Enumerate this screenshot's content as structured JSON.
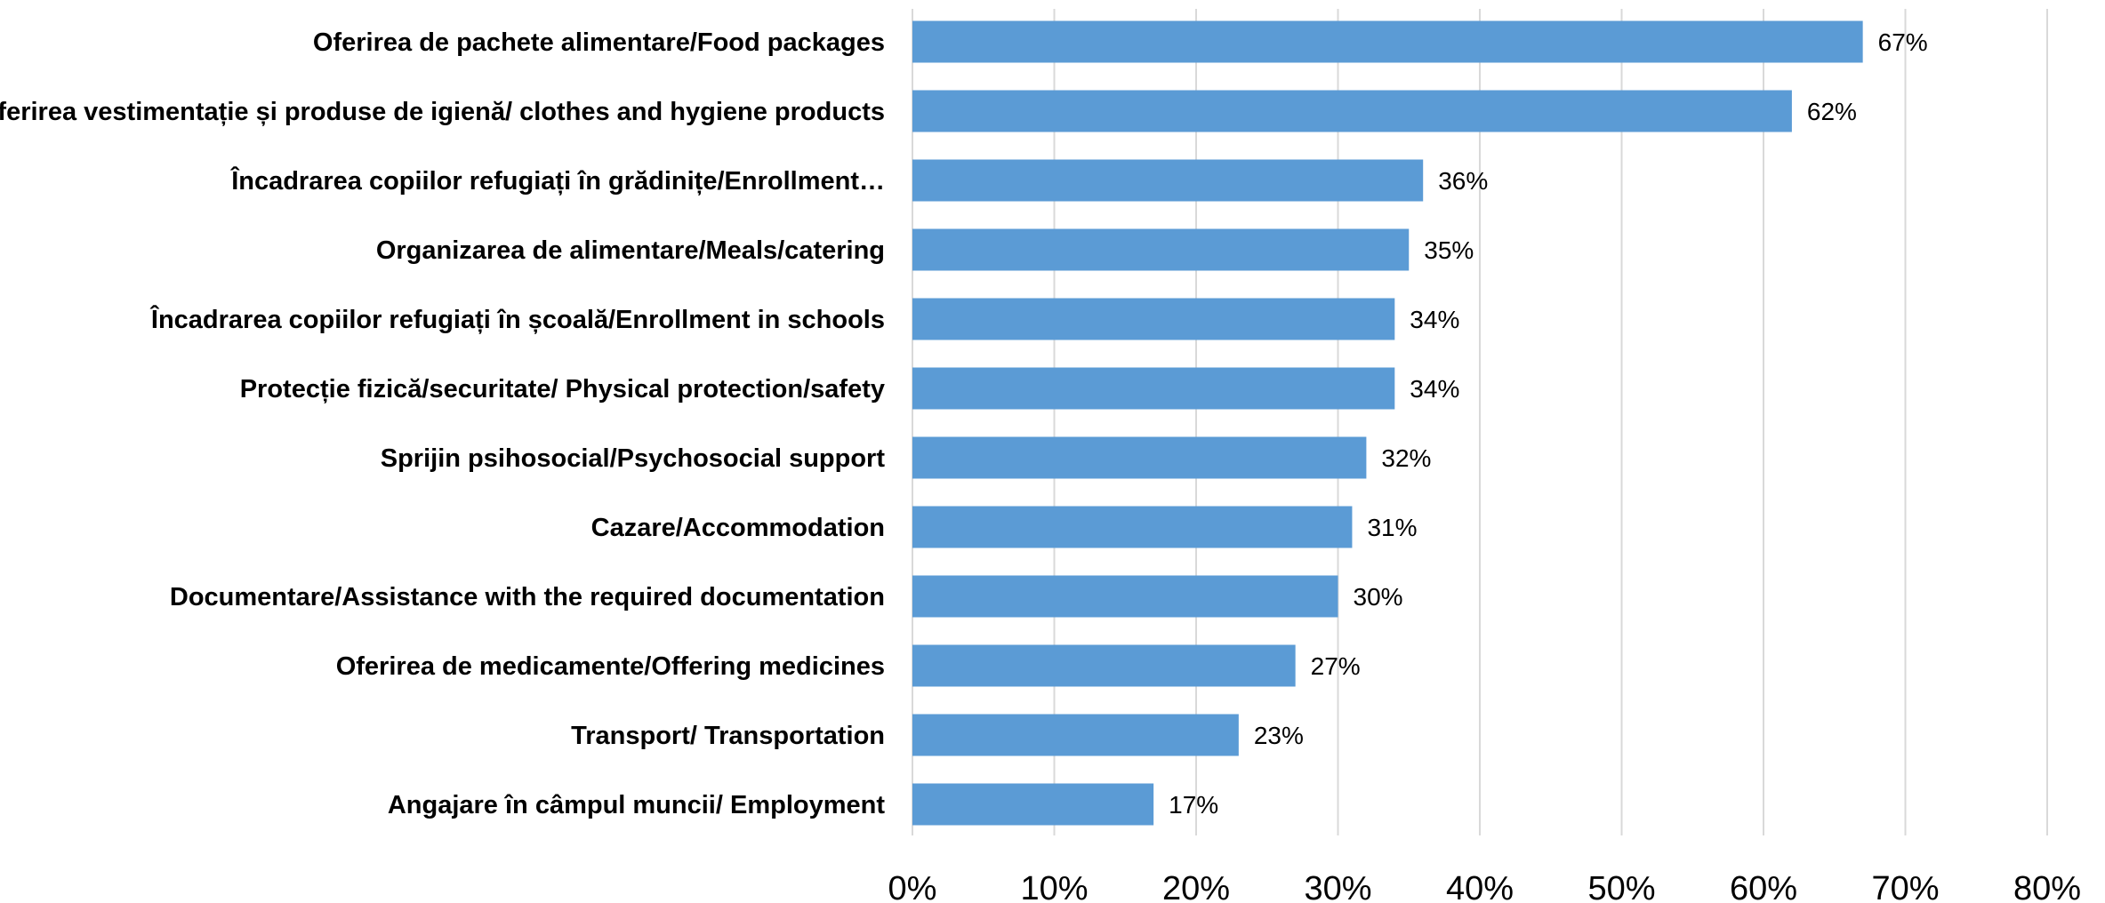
{
  "chart_data": {
    "type": "bar",
    "orientation": "horizontal",
    "title": "",
    "xlabel": "",
    "ylabel": "",
    "categories": [
      "Oferirea de pachete alimentare/Food packages",
      "Oferirea vestimentație și produse de igienă/ clothes and hygiene products",
      "Încadrarea copiilor refugiați în grădinițe/Enrollment…",
      "Organizarea de alimentare/Meals/catering",
      "Încadrarea copiilor refugiați în școală/Enrollment in schools",
      "Protecție fizică/securitate/ Physical protection/safety",
      "Sprijin psihosocial/Psychosocial support",
      "Cazare/Accommodation",
      "Documentare/Assistance with the required documentation",
      "Oferirea de medicamente/Offering medicines",
      "Transport/ Transportation",
      "Angajare în câmpul muncii/ Employment"
    ],
    "values": [
      67,
      62,
      36,
      35,
      34,
      34,
      32,
      31,
      30,
      27,
      23,
      17
    ],
    "data_labels": [
      "67%",
      "62%",
      "36%",
      "35%",
      "34%",
      "34%",
      "32%",
      "31%",
      "30%",
      "27%",
      "23%",
      "17%"
    ],
    "xlim": [
      0,
      80
    ],
    "x_ticks": [
      0,
      10,
      20,
      30,
      40,
      50,
      60,
      70,
      80
    ],
    "x_tick_labels": [
      "0%",
      "10%",
      "20%",
      "30%",
      "40%",
      "50%",
      "60%",
      "70%",
      "80%"
    ],
    "grid": true,
    "legend": "none",
    "bar_color": "#5b9bd5",
    "grid_color": "#d9d9d9",
    "text_color": "#000000"
  }
}
